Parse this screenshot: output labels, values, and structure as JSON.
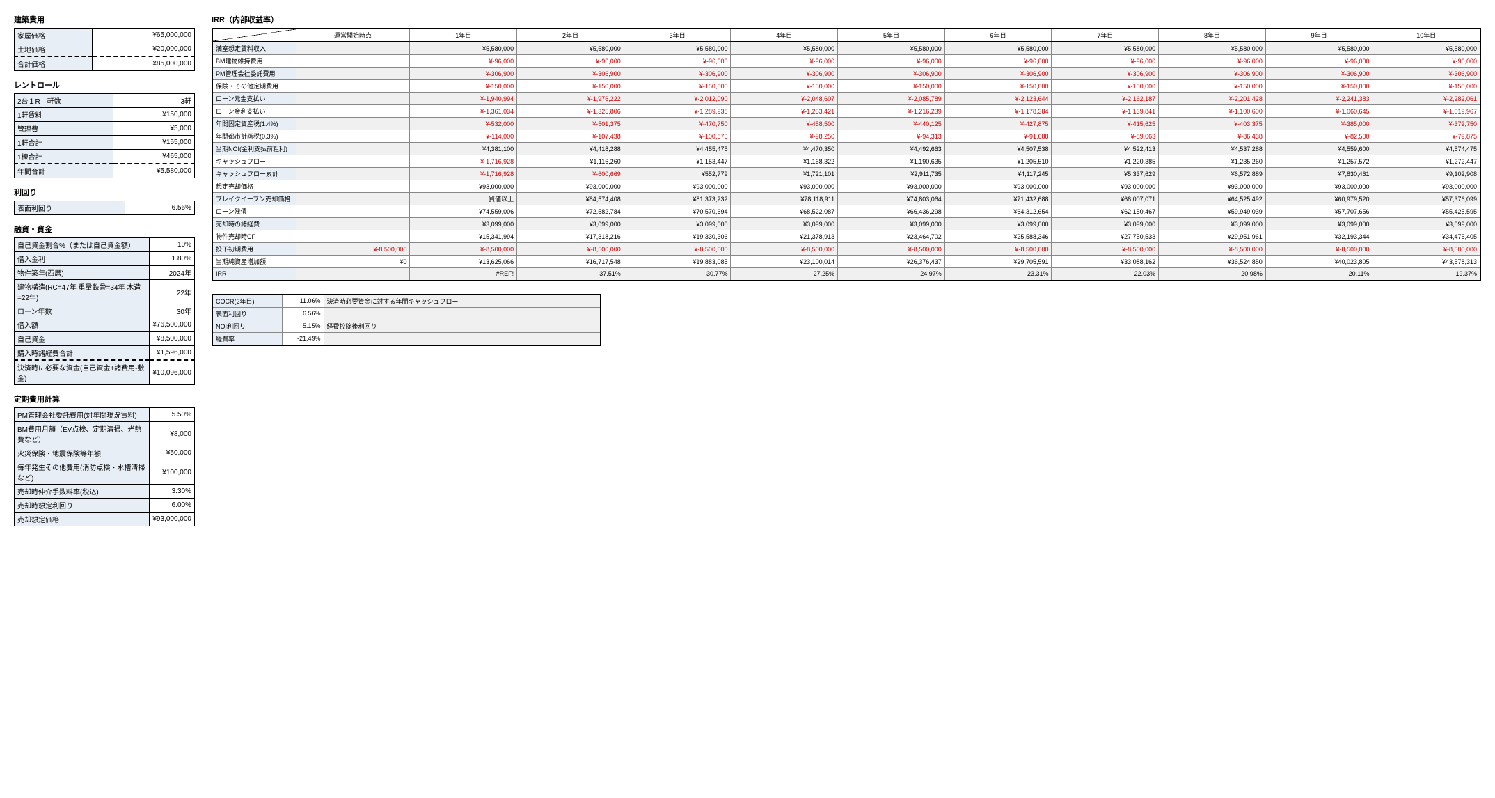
{
  "left": {
    "construction": {
      "title": "建築費用",
      "rows": [
        {
          "label": "家屋価格",
          "value": "¥65,000,000"
        },
        {
          "label": "土地価格",
          "value": "¥20,000,000"
        },
        {
          "label": "合計価格",
          "value": "¥85,000,000",
          "dashed": true
        }
      ]
    },
    "rentroll": {
      "title": "レントロール",
      "rows": [
        {
          "label": "2台１R　軒数",
          "value": "3軒"
        },
        {
          "label": "1軒賃料",
          "value": "¥150,000"
        },
        {
          "label": "管理費",
          "value": "¥5,000"
        },
        {
          "label": "1軒合計",
          "value": "¥155,000"
        },
        {
          "label": "1棟合計",
          "value": "¥465,000"
        },
        {
          "label": "年間合計",
          "value": "¥5,580,000",
          "dashed": true
        }
      ]
    },
    "yield": {
      "title": "利回り",
      "rows": [
        {
          "label": "表面利回り",
          "value": "6.56%"
        }
      ]
    },
    "financing": {
      "title": "融資・資金",
      "rows": [
        {
          "label": "自己資金割合%（または自己資金額）",
          "value": "10%"
        },
        {
          "label": "借入金利",
          "value": "1.80%"
        },
        {
          "label": "物件築年(西暦)",
          "value": "2024年"
        },
        {
          "label": "建物構造(RC=47年 重量鉄骨=34年 木造=22年)",
          "value": "22年"
        },
        {
          "label": "ローン年数",
          "value": "30年"
        },
        {
          "label": "借入額",
          "value": "¥76,500,000"
        },
        {
          "label": "自己資金",
          "value": "¥8,500,000"
        },
        {
          "label": "購入時諸経費合計",
          "value": "¥1,596,000"
        },
        {
          "label": "決済時に必要な資金(自己資金+諸費用-敷金)",
          "value": "¥10,096,000",
          "dashed": true
        }
      ]
    },
    "periodic": {
      "title": "定期費用計算",
      "rows": [
        {
          "label": "PM管理会社委託費用(対年間現況賃料)",
          "value": "5.50%"
        },
        {
          "label": "BM費用月額（EV点検、定期清掃、光熱費など）",
          "value": "¥8,000"
        },
        {
          "label": "火災保険・地震保険等年額",
          "value": "¥50,000"
        },
        {
          "label": "毎年発生その他費用(消防点検・水槽清掃など)",
          "value": "¥100,000"
        },
        {
          "label": "売却時仲介手数料率(税込)",
          "value": "3.30%"
        },
        {
          "label": "売却時想定利回り",
          "value": "6.00%"
        },
        {
          "label": "売却想定価格",
          "value": "¥93,000,000"
        }
      ]
    }
  },
  "irr": {
    "title": "IRR（内部収益率）",
    "headers": [
      "",
      "運営開始時点",
      "1年目",
      "2年目",
      "3年目",
      "4年目",
      "5年目",
      "6年目",
      "7年目",
      "8年目",
      "9年目",
      "10年目"
    ],
    "rows": [
      {
        "label": "満室想定賃料収入",
        "shade": true,
        "start": "",
        "vals": [
          "¥5,580,000",
          "¥5,580,000",
          "¥5,580,000",
          "¥5,580,000",
          "¥5,580,000",
          "¥5,580,000",
          "¥5,580,000",
          "¥5,580,000",
          "¥5,580,000",
          "¥5,580,000"
        ],
        "neg": false
      },
      {
        "label": "BM建物維持費用",
        "shade": false,
        "start": "",
        "vals": [
          "¥-96,000",
          "¥-96,000",
          "¥-96,000",
          "¥-96,000",
          "¥-96,000",
          "¥-96,000",
          "¥-96,000",
          "¥-96,000",
          "¥-96,000",
          "¥-96,000"
        ],
        "neg": true
      },
      {
        "label": "PM管理会社委託費用",
        "shade": true,
        "start": "",
        "vals": [
          "¥-306,900",
          "¥-306,900",
          "¥-306,900",
          "¥-306,900",
          "¥-306,900",
          "¥-306,900",
          "¥-306,900",
          "¥-306,900",
          "¥-306,900",
          "¥-306,900"
        ],
        "neg": true
      },
      {
        "label": "保険・その他定期費用",
        "shade": false,
        "start": "",
        "vals": [
          "¥-150,000",
          "¥-150,000",
          "¥-150,000",
          "¥-150,000",
          "¥-150,000",
          "¥-150,000",
          "¥-150,000",
          "¥-150,000",
          "¥-150,000",
          "¥-150,000"
        ],
        "neg": true
      },
      {
        "label": "ローン元金支払い",
        "shade": true,
        "start": "",
        "vals": [
          "¥-1,940,994",
          "¥-1,976,222",
          "¥-2,012,090",
          "¥-2,048,607",
          "¥-2,085,789",
          "¥-2,123,644",
          "¥-2,162,187",
          "¥-2,201,428",
          "¥-2,241,383",
          "¥-2,282,061"
        ],
        "neg": true
      },
      {
        "label": "ローン金利支払い",
        "shade": false,
        "start": "",
        "vals": [
          "¥-1,361,034",
          "¥-1,325,806",
          "¥-1,289,938",
          "¥-1,253,421",
          "¥-1,216,239",
          "¥-1,178,384",
          "¥-1,139,841",
          "¥-1,100,600",
          "¥-1,060,645",
          "¥-1,019,967"
        ],
        "neg": true
      },
      {
        "label": "年間固定資産税(1.4%)",
        "shade": true,
        "start": "",
        "vals": [
          "¥-532,000",
          "¥-501,375",
          "¥-470,750",
          "¥-458,500",
          "¥-440,125",
          "¥-427,875",
          "¥-415,625",
          "¥-403,375",
          "¥-385,000",
          "¥-372,750"
        ],
        "neg": true
      },
      {
        "label": "年間都市計画税(0.3%)",
        "shade": false,
        "start": "",
        "vals": [
          "¥-114,000",
          "¥-107,438",
          "¥-100,875",
          "¥-98,250",
          "¥-94,313",
          "¥-91,688",
          "¥-89,063",
          "¥-86,438",
          "¥-82,500",
          "¥-79,875"
        ],
        "neg": true
      },
      {
        "label": "当期NOI(金利支払前粗利)",
        "shade": true,
        "start": "",
        "vals": [
          "¥4,381,100",
          "¥4,418,288",
          "¥4,455,475",
          "¥4,470,350",
          "¥4,492,663",
          "¥4,507,538",
          "¥4,522,413",
          "¥4,537,288",
          "¥4,559,600",
          "¥4,574,475"
        ],
        "neg": false
      },
      {
        "label": "キャッシュフロー",
        "shade": false,
        "start": "",
        "vals": [
          "¥-1,716,928",
          "¥1,116,260",
          "¥1,153,447",
          "¥1,168,322",
          "¥1,190,635",
          "¥1,205,510",
          "¥1,220,385",
          "¥1,235,260",
          "¥1,257,572",
          "¥1,272,447"
        ],
        "negPer": [
          true,
          false,
          false,
          false,
          false,
          false,
          false,
          false,
          false,
          false
        ]
      },
      {
        "label": "キャッシュフロー累計",
        "shade": true,
        "start": "",
        "vals": [
          "¥-1,716,928",
          "¥-600,669",
          "¥552,779",
          "¥1,721,101",
          "¥2,911,735",
          "¥4,117,245",
          "¥5,337,629",
          "¥6,572,889",
          "¥7,830,461",
          "¥9,102,908"
        ],
        "negPer": [
          true,
          true,
          false,
          false,
          false,
          false,
          false,
          false,
          false,
          false
        ]
      },
      {
        "label": "想定売却価格",
        "shade": false,
        "start": "",
        "vals": [
          "¥93,000,000",
          "¥93,000,000",
          "¥93,000,000",
          "¥93,000,000",
          "¥93,000,000",
          "¥93,000,000",
          "¥93,000,000",
          "¥93,000,000",
          "¥93,000,000",
          "¥93,000,000"
        ],
        "neg": false
      },
      {
        "label": "ブレイクイーブン売却価格",
        "shade": true,
        "start": "",
        "vals": [
          "買値以上",
          "¥84,574,408",
          "¥81,373,232",
          "¥78,118,911",
          "¥74,803,064",
          "¥71,432,688",
          "¥68,007,071",
          "¥64,525,492",
          "¥60,979,520",
          "¥57,376,099"
        ],
        "neg": false
      },
      {
        "label": "ローン残債",
        "shade": false,
        "start": "",
        "vals": [
          "¥74,559,006",
          "¥72,582,784",
          "¥70,570,694",
          "¥68,522,087",
          "¥66,436,298",
          "¥64,312,654",
          "¥62,150,467",
          "¥59,949,039",
          "¥57,707,656",
          "¥55,425,595"
        ],
        "neg": false
      },
      {
        "label": "売却時の諸経費",
        "shade": true,
        "start": "",
        "vals": [
          "¥3,099,000",
          "¥3,099,000",
          "¥3,099,000",
          "¥3,099,000",
          "¥3,099,000",
          "¥3,099,000",
          "¥3,099,000",
          "¥3,099,000",
          "¥3,099,000",
          "¥3,099,000"
        ],
        "neg": false
      },
      {
        "label": "物件売却時CF",
        "shade": false,
        "start": "",
        "vals": [
          "¥15,341,994",
          "¥17,318,216",
          "¥19,330,306",
          "¥21,378,913",
          "¥23,464,702",
          "¥25,588,346",
          "¥27,750,533",
          "¥29,951,961",
          "¥32,193,344",
          "¥34,475,405"
        ],
        "neg": false
      },
      {
        "label": "投下初期費用",
        "shade": true,
        "start": "¥-8,500,000",
        "startNeg": true,
        "vals": [
          "¥-8,500,000",
          "¥-8,500,000",
          "¥-8,500,000",
          "¥-8,500,000",
          "¥-8,500,000",
          "¥-8,500,000",
          "¥-8,500,000",
          "¥-8,500,000",
          "¥-8,500,000",
          "¥-8,500,000"
        ],
        "neg": true
      },
      {
        "label": "当期純資産増加額",
        "shade": false,
        "start": "¥0",
        "vals": [
          "¥13,625,066",
          "¥16,717,548",
          "¥19,883,085",
          "¥23,100,014",
          "¥26,376,437",
          "¥29,705,591",
          "¥33,088,162",
          "¥36,524,850",
          "¥40,023,805",
          "¥43,578,313"
        ],
        "neg": false
      },
      {
        "label": "IRR",
        "shade": true,
        "start": "",
        "vals": [
          "#REF!",
          "37.51%",
          "30.77%",
          "27.25%",
          "24.97%",
          "23.31%",
          "22.03%",
          "20.98%",
          "20.11%",
          "19.37%"
        ],
        "neg": false
      }
    ]
  },
  "summary": {
    "rows": [
      {
        "label": "COCR(2年目)",
        "val": "11.06%",
        "desc": "決済時必要資金に対する年間キャッシュフロー"
      },
      {
        "label": "表面利回り",
        "val": "6.56%",
        "desc": ""
      },
      {
        "label": "NOI利回り",
        "val": "5.15%",
        "desc": "経費控除後利回り"
      },
      {
        "label": "経費率",
        "val": "-21.49%",
        "desc": ""
      }
    ]
  }
}
